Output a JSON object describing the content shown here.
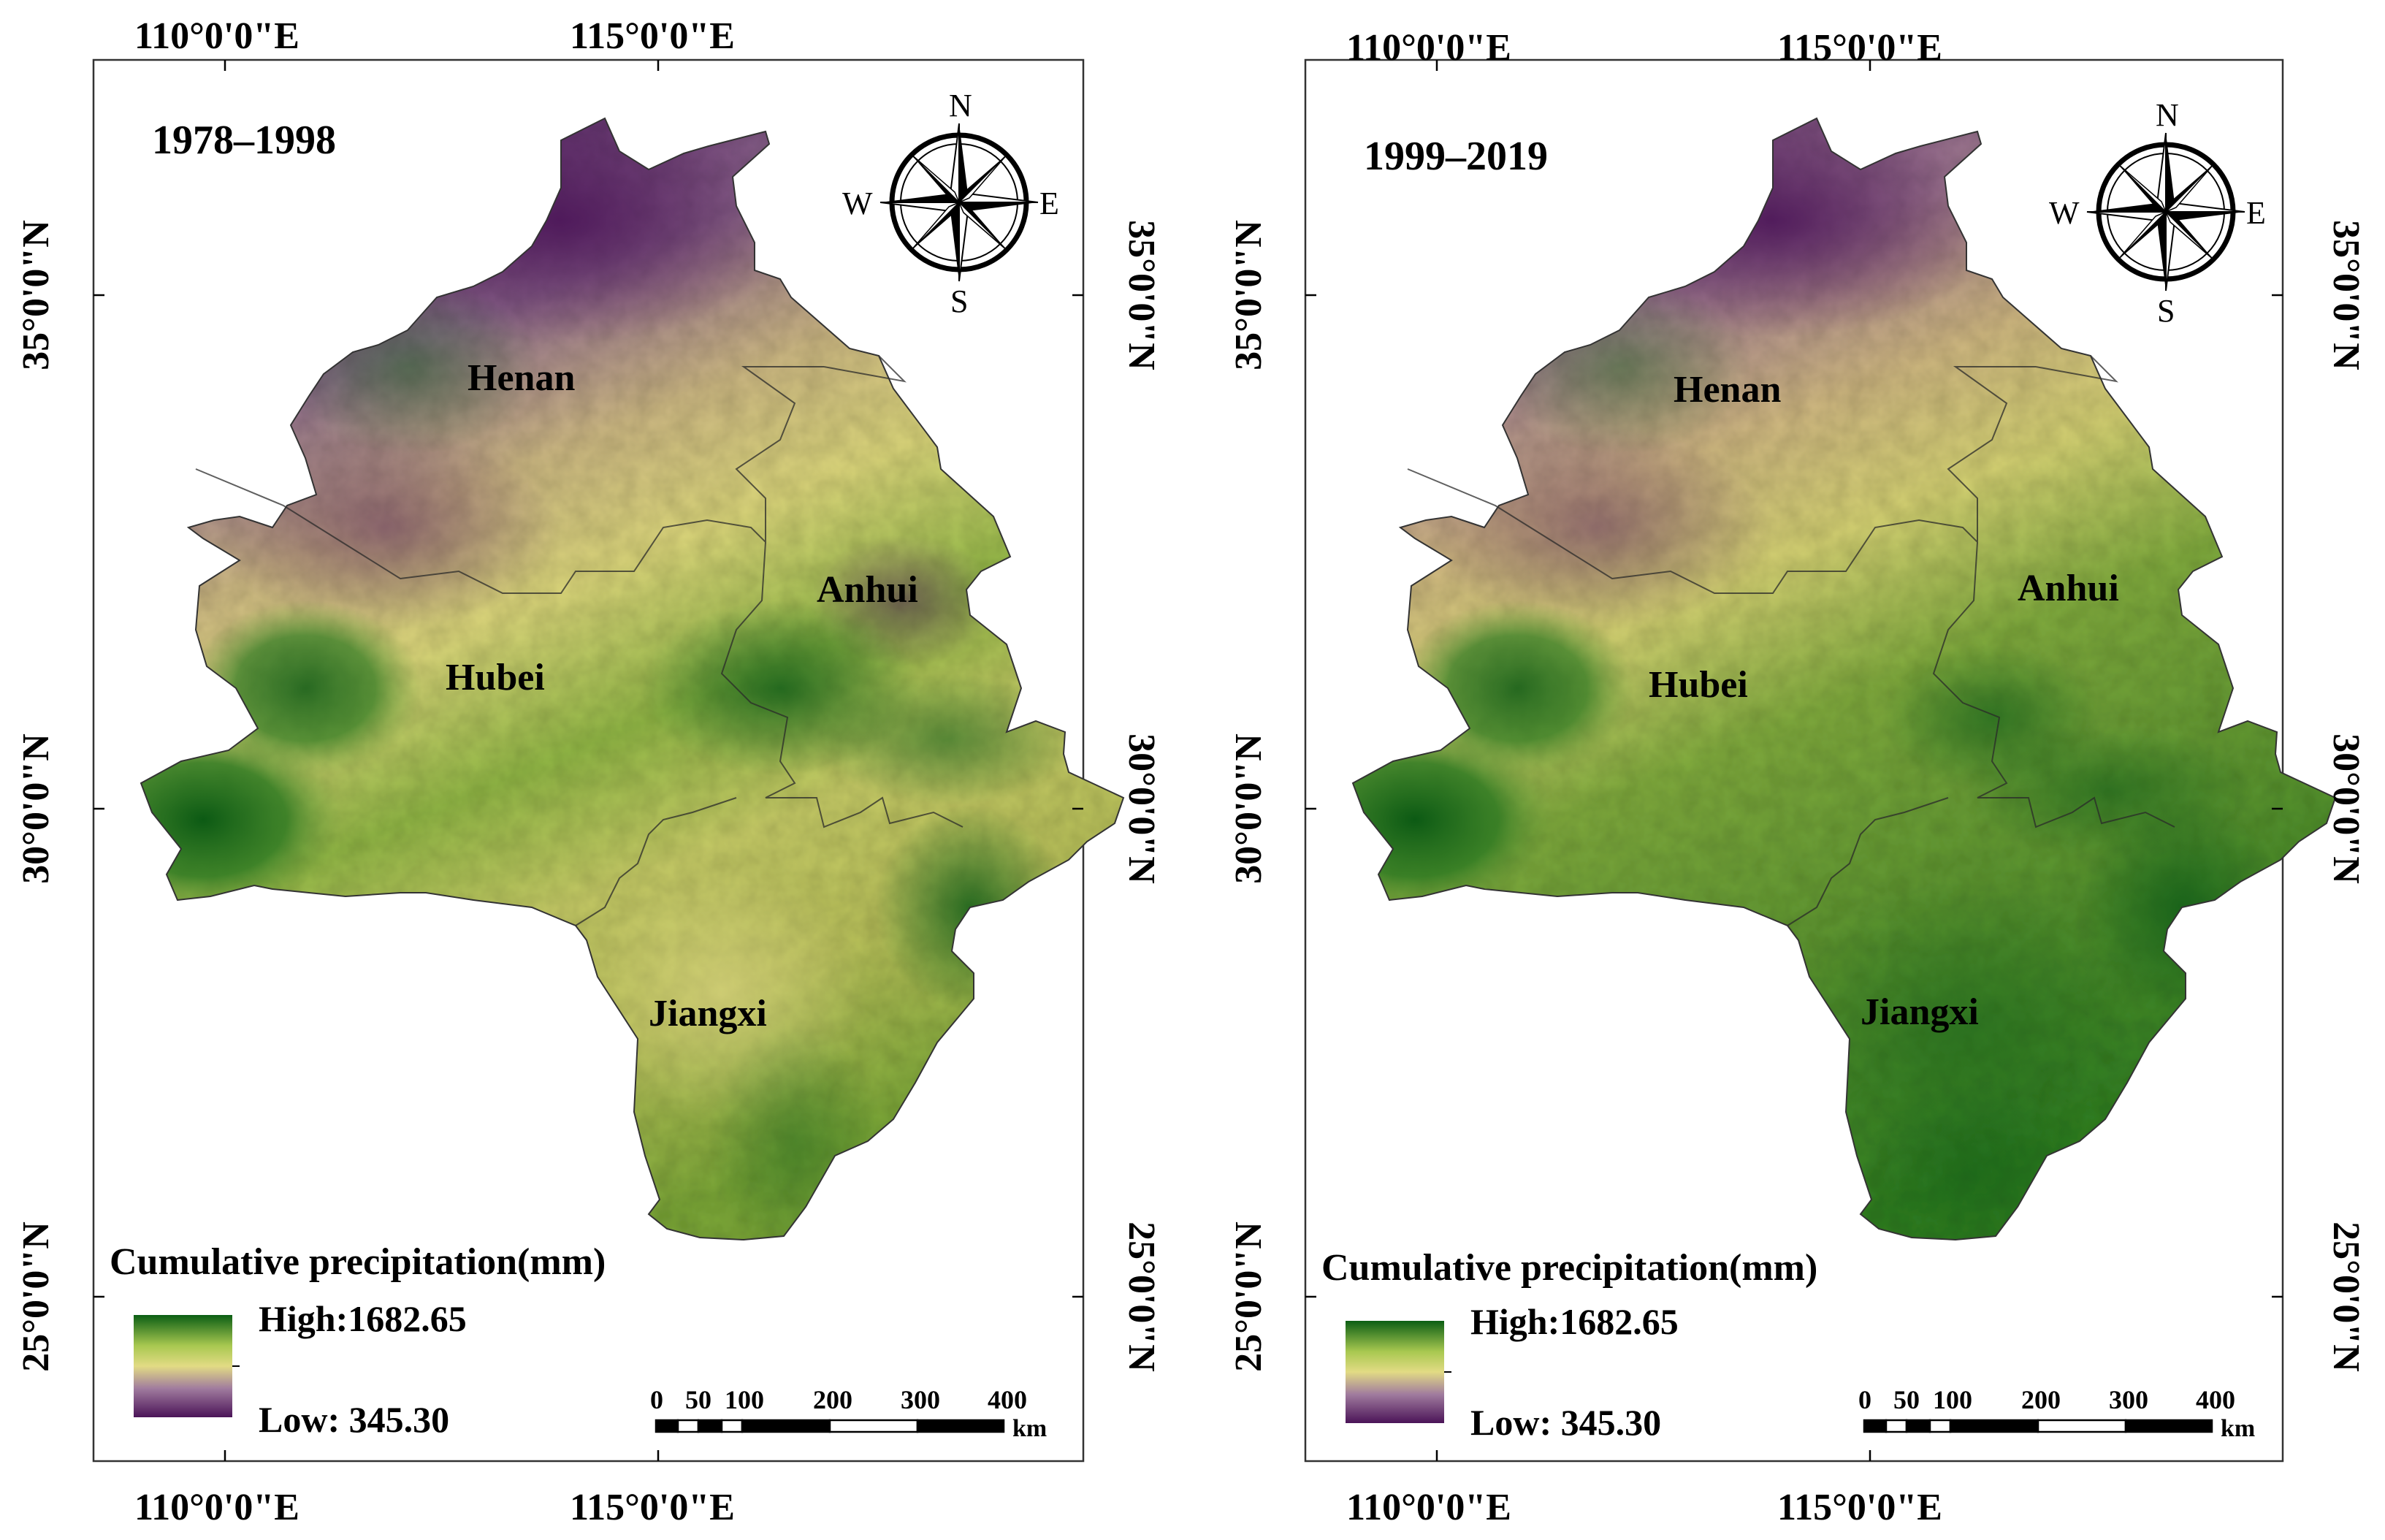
{
  "axes": {
    "top": [
      "110°0'0\"E",
      "115°0'0\"E"
    ],
    "bottom": [
      "110°0'0\"E",
      "115°0'0\"E"
    ],
    "left": [
      "35°0'0\"N",
      "30°0'0\"N",
      "25°0'0\"N"
    ],
    "right": [
      "35°0'0\"N",
      "30°0'0\"N",
      "25°0'0\"N"
    ]
  },
  "panels": [
    {
      "period": "1978–1998",
      "provinces": {
        "henan": "Henan",
        "anhui": "Anhui",
        "hubei": "Hubei",
        "jiangxi": "Jiangxi"
      }
    },
    {
      "period": "1999–2019",
      "provinces": {
        "henan": "Henan",
        "anhui": "Anhui",
        "hubei": "Hubei",
        "jiangxi": "Jiangxi"
      }
    }
  ],
  "legend": {
    "title": "Cumulative precipitation(mm)",
    "high": "High:1682.65",
    "low": "Low: 345.30",
    "colors": [
      "#0b5e14",
      "#a8c850",
      "#e2db84",
      "#a07b9e",
      "#4b1458"
    ]
  },
  "scale_bar": {
    "ticks": [
      "0",
      "50",
      "100",
      "200",
      "300",
      "400"
    ],
    "unit": "km"
  },
  "compass": {
    "n": "N",
    "s": "S",
    "e": "E",
    "w": "W"
  },
  "colors": {
    "purple": "#4b1458",
    "green": "#0f6418",
    "yellow": "#dcd67c",
    "border": "#222222"
  }
}
